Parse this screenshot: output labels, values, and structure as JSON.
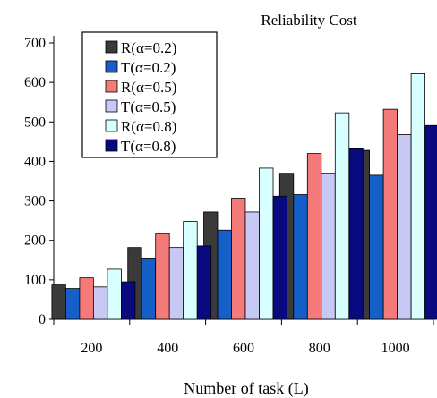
{
  "chart_data": {
    "type": "bar",
    "title": "Reliability Cost",
    "xlabel": "Number of task (L)",
    "ylabel": "",
    "ylim": [
      0,
      700
    ],
    "yticks": [
      0,
      100,
      200,
      300,
      400,
      500,
      600,
      700
    ],
    "categories": [
      "200",
      "400",
      "600",
      "800",
      "1000"
    ],
    "legend_position": "top-left",
    "grid": false,
    "series": [
      {
        "name": "R(α=0.2)",
        "color": "#3a3a3a",
        "values": [
          87,
          182,
          272,
          370,
          428
        ]
      },
      {
        "name": "T(α=0.2)",
        "color": "#1560c8",
        "values": [
          78,
          153,
          226,
          316,
          365
        ]
      },
      {
        "name": "R(α=0.5)",
        "color": "#f47a7a",
        "values": [
          105,
          217,
          307,
          420,
          532
        ]
      },
      {
        "name": "T(α=0.5)",
        "color": "#c8c8f4",
        "values": [
          82,
          182,
          272,
          370,
          468
        ]
      },
      {
        "name": "R(α=0.8)",
        "color": "#d8ffff",
        "values": [
          127,
          248,
          383,
          523,
          622
        ]
      },
      {
        "name": "T(α=0.8)",
        "color": "#0a0a80",
        "values": [
          95,
          186,
          312,
          432,
          491
        ]
      }
    ]
  }
}
